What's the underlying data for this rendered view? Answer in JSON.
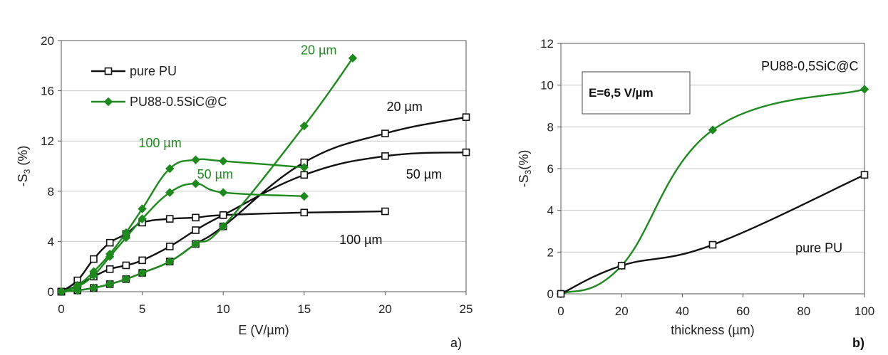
{
  "colors": {
    "pure": "#111111",
    "sic": "#1e8a1e",
    "grid": "#c8c8c8"
  },
  "chart_data": [
    {
      "id": "a",
      "type": "line",
      "panel_label": "a)",
      "xlabel": "E (V/µm)",
      "ylabel_main": "-S",
      "ylabel_sub": "3",
      "ylabel_tail": " (%)",
      "xlim": [
        0,
        25
      ],
      "ylim": [
        0,
        20
      ],
      "xticks": [
        0,
        5,
        10,
        15,
        20,
        25
      ],
      "yticks": [
        0,
        4,
        8,
        12,
        16,
        20
      ],
      "grid": "horizontal",
      "legend": [
        {
          "label": "pure PU",
          "series": "pure",
          "marker": "square"
        },
        {
          "label": "PU88-0.5SiC@C",
          "series": "sic",
          "marker": "diamond"
        }
      ],
      "series": [
        {
          "group": "pure",
          "marker": "square",
          "x": [
            0,
            1,
            2,
            3,
            4,
            5,
            6.7,
            8.3,
            10,
            15,
            20
          ],
          "y": [
            0,
            0.9,
            2.6,
            3.9,
            4.6,
            5.5,
            5.8,
            5.9,
            6.1,
            6.3,
            6.4
          ]
        },
        {
          "group": "pure",
          "marker": "square",
          "x": [
            0,
            1,
            2,
            3,
            4,
            5,
            6.7,
            8.3,
            10,
            15,
            20,
            25
          ],
          "y": [
            0,
            0.5,
            1.2,
            1.8,
            2.1,
            2.5,
            3.6,
            4.9,
            6.1,
            9.3,
            10.8,
            11.1
          ]
        },
        {
          "group": "pure",
          "marker": "square",
          "x": [
            0,
            1,
            2,
            3,
            4,
            5,
            6.7,
            8.3,
            10,
            15,
            20,
            25
          ],
          "y": [
            0,
            0.1,
            0.3,
            0.6,
            1.0,
            1.5,
            2.4,
            3.8,
            5.2,
            10.3,
            12.6,
            13.9
          ]
        },
        {
          "group": "sic",
          "marker": "diamond",
          "x": [
            0,
            1,
            2,
            3,
            4,
            5,
            6.7,
            8.3,
            10,
            15
          ],
          "y": [
            0,
            0.5,
            1.6,
            3.0,
            4.7,
            6.6,
            9.8,
            10.5,
            10.4,
            9.9
          ]
        },
        {
          "group": "sic",
          "marker": "diamond",
          "x": [
            0,
            1,
            2,
            3,
            4,
            5,
            6.7,
            8.3,
            10,
            15
          ],
          "y": [
            0,
            0.4,
            1.3,
            2.8,
            4.3,
            5.8,
            7.9,
            8.6,
            7.9,
            7.6
          ]
        },
        {
          "group": "sic",
          "marker": "diamond",
          "x": [
            0,
            1,
            2,
            3,
            4,
            5,
            6.7,
            8.3,
            10,
            15,
            18
          ],
          "y": [
            0,
            0.1,
            0.3,
            0.6,
            1.0,
            1.5,
            2.4,
            3.8,
            5.2,
            13.2,
            18.6
          ]
        }
      ],
      "annotations": [
        {
          "text": "20 µm",
          "x": 15.9,
          "y": 18.9,
          "group": "sic"
        },
        {
          "text": "100 µm",
          "x": 6.1,
          "y": 11.5,
          "group": "sic"
        },
        {
          "text": "50 µm",
          "x": 9.5,
          "y": 9.0,
          "group": "sic"
        },
        {
          "text": "20 µm",
          "x": 21.2,
          "y": 14.4,
          "group": "pure"
        },
        {
          "text": "50 µm",
          "x": 22.4,
          "y": 9.0,
          "group": "pure"
        },
        {
          "text": "100 µm",
          "x": 18.5,
          "y": 3.8,
          "group": "pure"
        }
      ]
    },
    {
      "id": "b",
      "type": "line",
      "panel_label": "b)",
      "xlabel": "thickness (µm)",
      "ylabel_main": "-S",
      "ylabel_sub": "3",
      "ylabel_tail": "(%)",
      "xlim": [
        0,
        100
      ],
      "ylim": [
        0,
        12
      ],
      "xticks": [
        0,
        20,
        40,
        60,
        80,
        100
      ],
      "yticks": [
        0,
        2,
        4,
        6,
        8,
        10,
        12
      ],
      "grid": "horizontal",
      "box_label": "E=6,5 V/µm",
      "series": [
        {
          "name": "PU88-0,5SiC@C",
          "group": "sic",
          "marker": "diamond",
          "x": [
            0,
            20,
            50,
            100
          ],
          "y": [
            0,
            1.35,
            7.85,
            9.8
          ]
        },
        {
          "name": "pure PU",
          "group": "pure",
          "marker": "square",
          "x": [
            0,
            20,
            50,
            100
          ],
          "y": [
            0,
            1.35,
            2.35,
            5.7
          ]
        }
      ],
      "annotations": [
        {
          "text": "PU88-0,5SiC@C",
          "x": 82,
          "y": 10.7,
          "group": "pure"
        },
        {
          "text": "pure PU",
          "x": 85,
          "y": 2.0,
          "group": "pure"
        }
      ]
    }
  ]
}
